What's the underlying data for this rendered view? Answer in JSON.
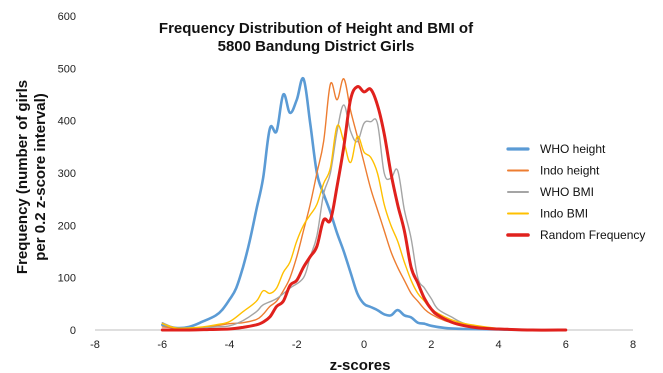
{
  "chart_data": {
    "type": "line",
    "title_lines": [
      "Frequency Distribution of Height and BMI of",
      "5800 Bandung District Girls"
    ],
    "xlabel": "z-scores",
    "ylabel_lines": [
      "Frequency (number of girls",
      "per 0.2 z-score interval)"
    ],
    "xlim": [
      -8,
      8
    ],
    "ylim": [
      0,
      600
    ],
    "x_ticks": [
      "-8",
      "-6",
      "-4",
      "-2",
      "0",
      "2",
      "4",
      "6",
      "8"
    ],
    "y_ticks": [
      "0",
      "100",
      "200",
      "300",
      "400",
      "500",
      "600"
    ],
    "grid": false,
    "legend_position": "right",
    "series": [
      {
        "name": "WHO height",
        "color": "#5b9bd5",
        "width": 2.6,
        "points": [
          [
            -6.0,
            10
          ],
          [
            -5.6,
            4
          ],
          [
            -5.2,
            6
          ],
          [
            -4.8,
            16
          ],
          [
            -4.4,
            28
          ],
          [
            -4.2,
            40
          ],
          [
            -4.0,
            58
          ],
          [
            -3.8,
            80
          ],
          [
            -3.6,
            120
          ],
          [
            -3.4,
            170
          ],
          [
            -3.2,
            230
          ],
          [
            -3.0,
            290
          ],
          [
            -2.8,
            385
          ],
          [
            -2.6,
            380
          ],
          [
            -2.4,
            450
          ],
          [
            -2.2,
            415
          ],
          [
            -2.0,
            440
          ],
          [
            -1.8,
            480
          ],
          [
            -1.6,
            395
          ],
          [
            -1.4,
            300
          ],
          [
            -1.2,
            260
          ],
          [
            -1.0,
            225
          ],
          [
            -0.8,
            185
          ],
          [
            -0.6,
            150
          ],
          [
            -0.4,
            110
          ],
          [
            -0.2,
            70
          ],
          [
            0.0,
            50
          ],
          [
            0.2,
            44
          ],
          [
            0.4,
            38
          ],
          [
            0.6,
            30
          ],
          [
            0.8,
            28
          ],
          [
            1.0,
            38
          ],
          [
            1.2,
            28
          ],
          [
            1.4,
            24
          ],
          [
            1.6,
            14
          ],
          [
            1.8,
            12
          ],
          [
            2.0,
            8
          ],
          [
            2.4,
            4
          ],
          [
            3.0,
            2
          ],
          [
            4.0,
            1
          ],
          [
            5.0,
            0
          ]
        ]
      },
      {
        "name": "Indo height",
        "color": "#ed7d31",
        "width": 1.4,
        "points": [
          [
            -6.0,
            6
          ],
          [
            -5.4,
            3
          ],
          [
            -4.8,
            5
          ],
          [
            -4.4,
            8
          ],
          [
            -4.0,
            12
          ],
          [
            -3.6,
            14
          ],
          [
            -3.2,
            20
          ],
          [
            -3.0,
            30
          ],
          [
            -2.8,
            45
          ],
          [
            -2.6,
            55
          ],
          [
            -2.4,
            75
          ],
          [
            -2.2,
            100
          ],
          [
            -2.0,
            140
          ],
          [
            -1.8,
            190
          ],
          [
            -1.6,
            240
          ],
          [
            -1.4,
            300
          ],
          [
            -1.2,
            360
          ],
          [
            -1.0,
            470
          ],
          [
            -0.8,
            440
          ],
          [
            -0.6,
            480
          ],
          [
            -0.4,
            420
          ],
          [
            -0.2,
            370
          ],
          [
            0.0,
            320
          ],
          [
            0.2,
            270
          ],
          [
            0.4,
            230
          ],
          [
            0.6,
            190
          ],
          [
            0.8,
            150
          ],
          [
            1.0,
            120
          ],
          [
            1.2,
            95
          ],
          [
            1.4,
            70
          ],
          [
            1.6,
            55
          ],
          [
            1.8,
            40
          ],
          [
            2.0,
            30
          ],
          [
            2.4,
            18
          ],
          [
            2.8,
            12
          ],
          [
            3.2,
            6
          ],
          [
            4.0,
            2
          ],
          [
            5.0,
            0
          ]
        ]
      },
      {
        "name": "WHO BMI",
        "color": "#a5a5a5",
        "width": 1.4,
        "points": [
          [
            -6.0,
            14
          ],
          [
            -5.6,
            4
          ],
          [
            -5.2,
            3
          ],
          [
            -4.8,
            4
          ],
          [
            -4.4,
            6
          ],
          [
            -4.0,
            8
          ],
          [
            -3.6,
            18
          ],
          [
            -3.2,
            35
          ],
          [
            -3.0,
            48
          ],
          [
            -2.6,
            60
          ],
          [
            -2.2,
            80
          ],
          [
            -1.8,
            100
          ],
          [
            -1.6,
            140
          ],
          [
            -1.4,
            180
          ],
          [
            -1.2,
            260
          ],
          [
            -1.0,
            300
          ],
          [
            -0.8,
            380
          ],
          [
            -0.6,
            430
          ],
          [
            -0.4,
            380
          ],
          [
            -0.2,
            360
          ],
          [
            0.0,
            395
          ],
          [
            0.2,
            398
          ],
          [
            0.4,
            395
          ],
          [
            0.6,
            300
          ],
          [
            0.8,
            290
          ],
          [
            1.0,
            305
          ],
          [
            1.2,
            230
          ],
          [
            1.4,
            175
          ],
          [
            1.6,
            100
          ],
          [
            1.8,
            80
          ],
          [
            2.0,
            60
          ],
          [
            2.2,
            40
          ],
          [
            2.6,
            25
          ],
          [
            3.0,
            12
          ],
          [
            3.6,
            4
          ],
          [
            4.2,
            2
          ],
          [
            5.0,
            0
          ]
        ]
      },
      {
        "name": "Indo BMI",
        "color": "#ffc000",
        "width": 1.4,
        "points": [
          [
            -6.0,
            12
          ],
          [
            -5.6,
            4
          ],
          [
            -5.2,
            4
          ],
          [
            -4.8,
            6
          ],
          [
            -4.4,
            10
          ],
          [
            -4.0,
            16
          ],
          [
            -3.6,
            35
          ],
          [
            -3.2,
            55
          ],
          [
            -3.0,
            75
          ],
          [
            -2.8,
            70
          ],
          [
            -2.6,
            80
          ],
          [
            -2.4,
            110
          ],
          [
            -2.2,
            130
          ],
          [
            -2.0,
            170
          ],
          [
            -1.8,
            200
          ],
          [
            -1.6,
            220
          ],
          [
            -1.4,
            240
          ],
          [
            -1.2,
            280
          ],
          [
            -1.0,
            310
          ],
          [
            -0.8,
            390
          ],
          [
            -0.6,
            360
          ],
          [
            -0.4,
            320
          ],
          [
            -0.2,
            370
          ],
          [
            0.0,
            340
          ],
          [
            0.2,
            330
          ],
          [
            0.4,
            300
          ],
          [
            0.6,
            240
          ],
          [
            0.8,
            200
          ],
          [
            1.0,
            170
          ],
          [
            1.2,
            130
          ],
          [
            1.4,
            95
          ],
          [
            1.6,
            70
          ],
          [
            1.8,
            55
          ],
          [
            2.0,
            40
          ],
          [
            2.4,
            25
          ],
          [
            2.8,
            15
          ],
          [
            3.2,
            10
          ],
          [
            4.0,
            3
          ],
          [
            5.0,
            0
          ]
        ]
      },
      {
        "name": "Random Frequency",
        "color": "#e0211d",
        "width": 3.0,
        "points": [
          [
            -6.0,
            0
          ],
          [
            -5.2,
            0
          ],
          [
            -4.6,
            1
          ],
          [
            -4.0,
            2
          ],
          [
            -3.6,
            5
          ],
          [
            -3.2,
            10
          ],
          [
            -3.0,
            15
          ],
          [
            -2.8,
            25
          ],
          [
            -2.6,
            45
          ],
          [
            -2.4,
            55
          ],
          [
            -2.2,
            85
          ],
          [
            -2.0,
            95
          ],
          [
            -1.8,
            120
          ],
          [
            -1.6,
            140
          ],
          [
            -1.4,
            160
          ],
          [
            -1.2,
            210
          ],
          [
            -1.0,
            210
          ],
          [
            -0.8,
            275
          ],
          [
            -0.6,
            350
          ],
          [
            -0.4,
            440
          ],
          [
            -0.2,
            465
          ],
          [
            0.0,
            455
          ],
          [
            0.2,
            460
          ],
          [
            0.4,
            430
          ],
          [
            0.6,
            375
          ],
          [
            0.8,
            300
          ],
          [
            1.0,
            240
          ],
          [
            1.2,
            190
          ],
          [
            1.4,
            120
          ],
          [
            1.6,
            90
          ],
          [
            1.8,
            60
          ],
          [
            2.0,
            40
          ],
          [
            2.2,
            28
          ],
          [
            2.6,
            15
          ],
          [
            3.0,
            8
          ],
          [
            3.4,
            4
          ],
          [
            4.0,
            2
          ],
          [
            5.0,
            0
          ],
          [
            6.0,
            0
          ]
        ]
      }
    ]
  }
}
